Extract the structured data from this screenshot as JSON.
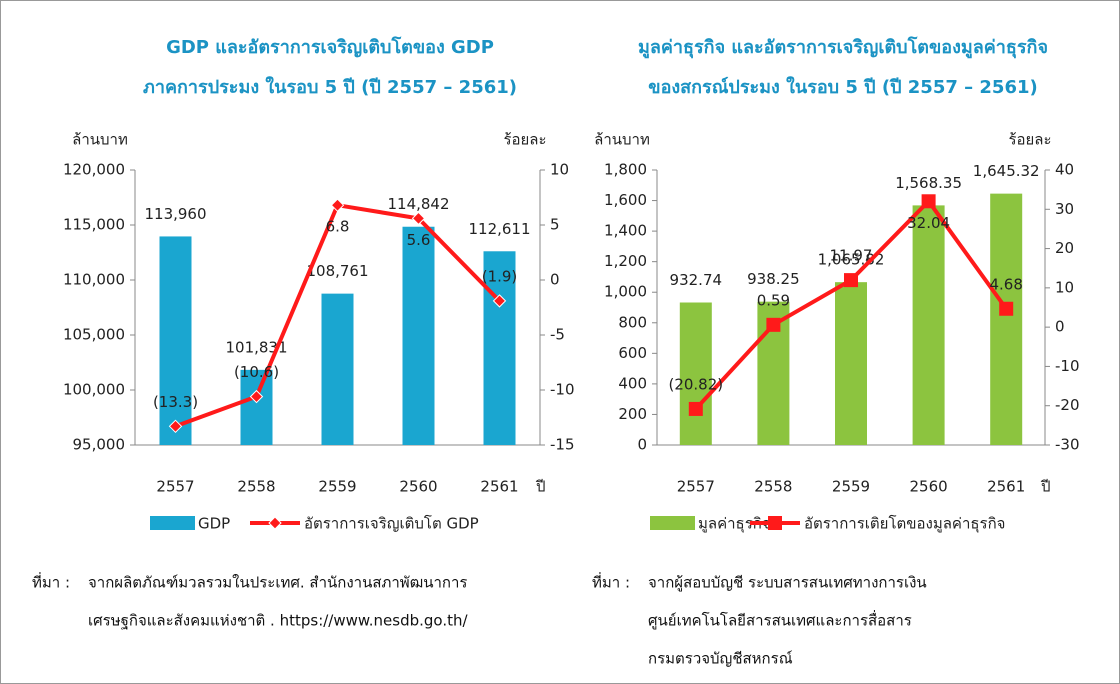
{
  "chart_data": [
    {
      "type": "combo",
      "title": [
        "GDP และอัตราการเจริญเติบโตของ GDP",
        "ภาคการประมง ในรอบ 5 ปี  (ปี 2557 – 2561)"
      ],
      "y_label": "ล้านบาท",
      "y2_label": "ร้อยละ",
      "x_label": "ปี",
      "categories": [
        "2557",
        "2558",
        "2559",
        "2560",
        "2561"
      ],
      "series": [
        {
          "name": "GDP",
          "type": "bar",
          "color": "#1aa6d0",
          "values": [
            113960,
            101831,
            108761,
            114842,
            112611
          ],
          "value_labels": [
            "113,960",
            "101,831",
            "108,761",
            "114,842",
            "112,611"
          ]
        },
        {
          "name": "อัตราการเจริญเติบโต GDP",
          "type": "line",
          "axis": "y2",
          "color": "#ff1a1a",
          "marker": "diamond",
          "values": [
            -13.3,
            -10.6,
            6.8,
            5.6,
            -1.9
          ],
          "value_labels": [
            "(13.3)",
            "(10.6)",
            "6.8",
            "5.6",
            "(1.9)"
          ]
        }
      ],
      "ylim": [
        95000,
        120000
      ],
      "yticks": [
        {
          "value": 95000,
          "label": "95,000"
        },
        {
          "value": 100000,
          "label": "100,000"
        },
        {
          "value": 105000,
          "label": "105,000"
        },
        {
          "value": 110000,
          "label": "110,000"
        },
        {
          "value": 115000,
          "label": "115,000"
        },
        {
          "value": 120000,
          "label": "120,000"
        }
      ],
      "y2lim": [
        -15,
        10
      ],
      "y2ticks": [
        -15,
        -10,
        -5,
        0,
        5,
        10
      ]
    },
    {
      "type": "combo",
      "title": [
        "มูลค่าธุรกิจ และอัตราการเจริญเติบโตของมูลค่าธุรกิจ",
        "ของสกรณ์ประมง ในรอบ 5 ปี  (ปี 2557 – 2561)"
      ],
      "y_label": "ล้านบาท",
      "y2_label": "ร้อยละ",
      "x_label": "ปี",
      "categories": [
        "2557",
        "2558",
        "2559",
        "2560",
        "2561"
      ],
      "series": [
        {
          "name": "มูลค่าธุรกิจ",
          "type": "bar",
          "color": "#8cc43f",
          "values": [
            932.74,
            938.25,
            1065.82,
            1568.35,
            1645.32
          ],
          "value_labels": [
            "932.74",
            "938.25",
            "1,065.82",
            "1,568.35",
            "1,645.32"
          ]
        },
        {
          "name": "อัตราการเติยโตของมูลค่าธุรกิจ",
          "type": "line",
          "axis": "y2",
          "color": "#ff1a1a",
          "marker": "square",
          "values": [
            -20.82,
            0.59,
            11.97,
            32.04,
            4.68
          ],
          "value_labels": [
            "(20.82)",
            "0.59",
            "11.97",
            "32.04",
            "4.68"
          ]
        }
      ],
      "ylim": [
        0,
        1800
      ],
      "yticks": [
        0,
        200,
        400,
        600,
        800,
        {
          "value": 1000,
          "label": "1,000"
        },
        {
          "value": 1200,
          "label": "1,200"
        },
        {
          "value": 1400,
          "label": "1,400"
        },
        {
          "value": 1600,
          "label": "1,600"
        },
        {
          "value": 1800,
          "label": "1,800"
        }
      ],
      "y2lim": [
        -30,
        40
      ],
      "y2ticks": [
        -30,
        -20,
        -10,
        0,
        10,
        20,
        30,
        40
      ]
    }
  ],
  "notes": [
    {
      "label": "ที่มา :",
      "lines": [
        "จากผลิตภัณฑ์มวลรวมในประเทศ. สำนักงานสภาพัฒนาการ",
        "เศรษฐกิจและสังคมแห่งชาติ . https://www.nesdb.go.th/"
      ]
    },
    {
      "label": "ที่มา :",
      "lines": [
        "จากผู้สอบบัญชี ระบบสารสนเทศทางการเงิน",
        "ศูนย์เทคโนโลยีสารสนเทศและการสื่อสาร",
        "กรมตรวจบัญชีสหกรณ์"
      ]
    }
  ]
}
